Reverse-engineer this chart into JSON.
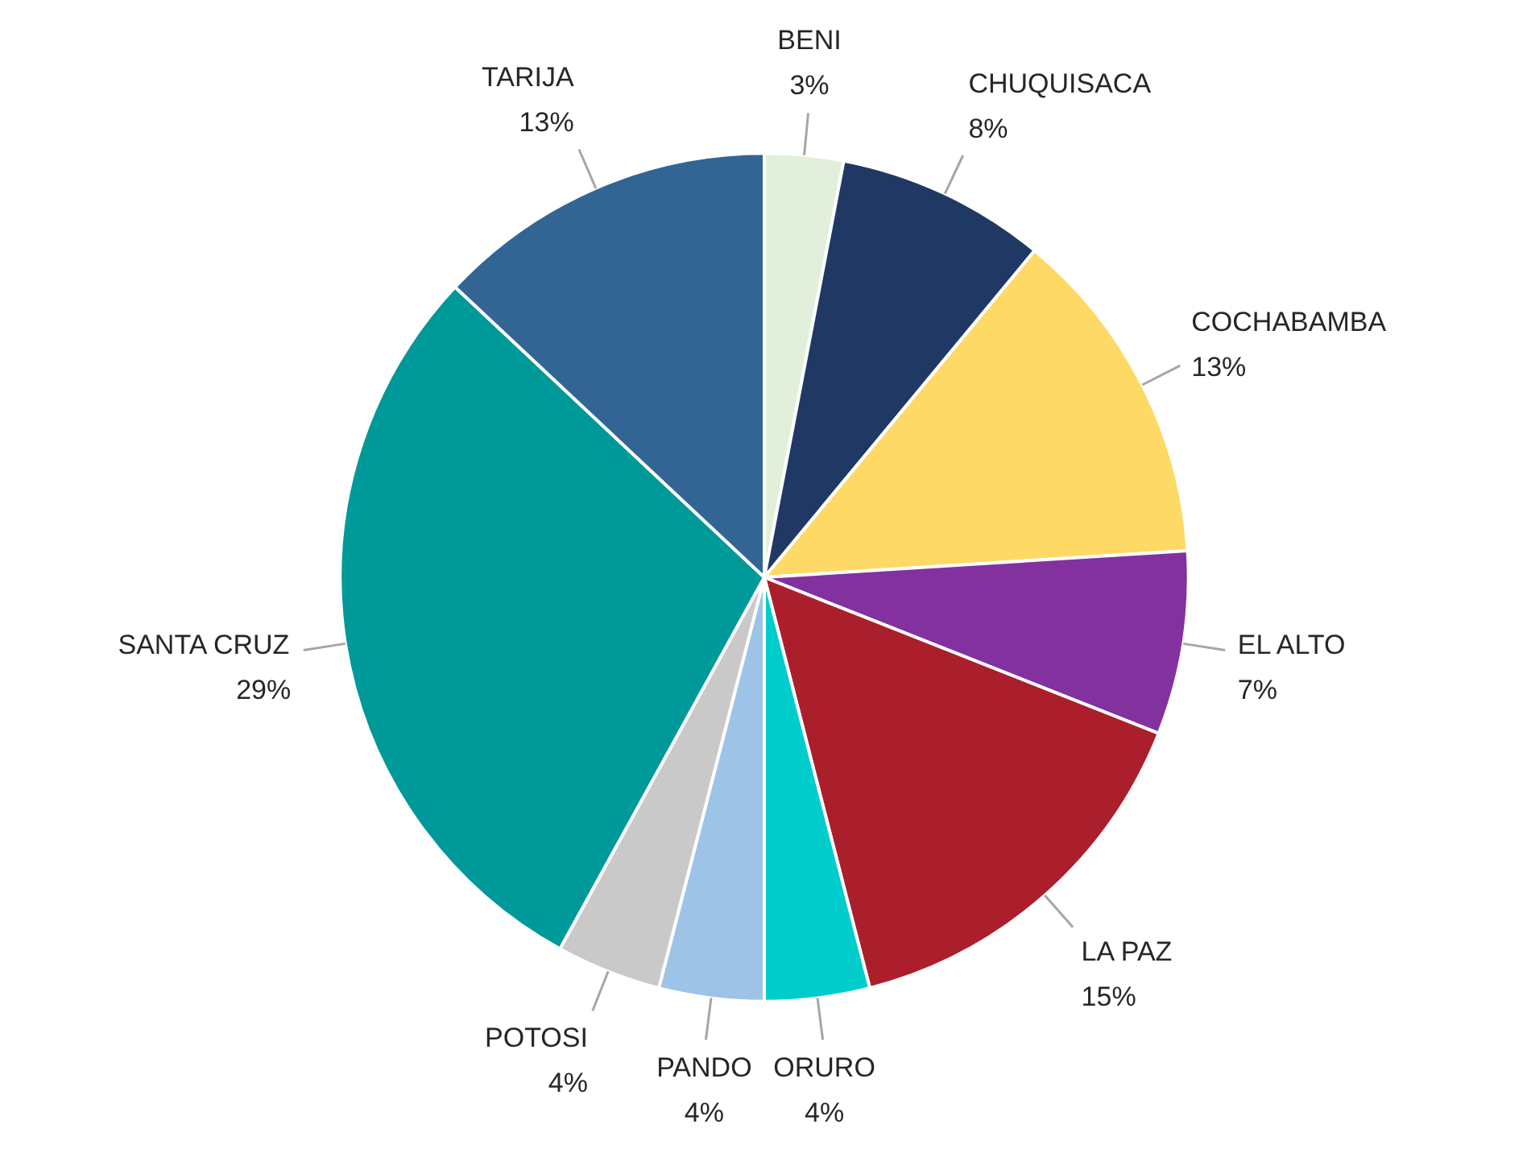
{
  "chart_data": {
    "type": "pie",
    "categories": [
      "BENI",
      "CHUQUISACA",
      "COCHABAMBA",
      "EL ALTO",
      "LA PAZ",
      "ORURO",
      "PANDO",
      "POTOSI",
      "SANTA CRUZ",
      "TARIJA"
    ],
    "values": [
      3,
      8,
      13,
      7,
      15,
      4,
      4,
      4,
      29,
      13
    ],
    "value_labels": [
      "3%",
      "8%",
      "13%",
      "7%",
      "15%",
      "4%",
      "4%",
      "4%",
      "29%",
      "13%"
    ],
    "colors": [
      "#e2efda",
      "#203864",
      "#ffd966",
      "#8431a0",
      "#ab1f2c",
      "#00cccc",
      "#9dc3e6",
      "#c9c9c9",
      "#009999",
      "#326593"
    ]
  }
}
